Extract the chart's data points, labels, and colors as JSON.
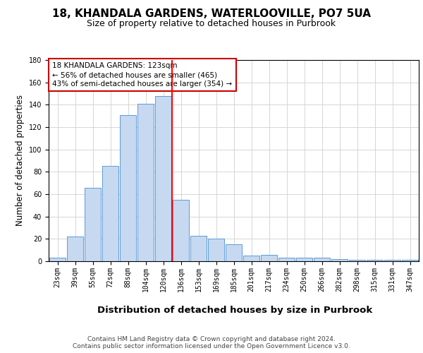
{
  "title1": "18, KHANDALA GARDENS, WATERLOOVILLE, PO7 5UA",
  "title2": "Size of property relative to detached houses in Purbrook",
  "xlabel": "Distribution of detached houses by size in Purbrook",
  "ylabel": "Number of detached properties",
  "categories": [
    "23sqm",
    "39sqm",
    "55sqm",
    "72sqm",
    "88sqm",
    "104sqm",
    "120sqm",
    "136sqm",
    "153sqm",
    "169sqm",
    "185sqm",
    "201sqm",
    "217sqm",
    "234sqm",
    "250sqm",
    "266sqm",
    "282sqm",
    "298sqm",
    "315sqm",
    "331sqm",
    "347sqm"
  ],
  "values": [
    3,
    22,
    66,
    85,
    131,
    141,
    148,
    55,
    23,
    20,
    15,
    5,
    6,
    3,
    3,
    3,
    2,
    1,
    1,
    1,
    1
  ],
  "bar_color": "#c6d9f0",
  "bar_edge_color": "#5b9bd5",
  "red_line_index": 6.5,
  "ylim": [
    0,
    180
  ],
  "yticks": [
    0,
    20,
    40,
    60,
    80,
    100,
    120,
    140,
    160,
    180
  ],
  "annotation_text": "18 KHANDALA GARDENS: 123sqm\n← 56% of detached houses are smaller (465)\n43% of semi-detached houses are larger (354) →",
  "annotation_box_color": "#ffffff",
  "annotation_box_edge_color": "#cc0000",
  "footnote": "Contains HM Land Registry data © Crown copyright and database right 2024.\nContains public sector information licensed under the Open Government Licence v3.0.",
  "background_color": "#ffffff",
  "grid_color": "#d0d0d0",
  "title1_fontsize": 11,
  "title2_fontsize": 9,
  "xlabel_fontsize": 9.5,
  "ylabel_fontsize": 8.5,
  "tick_fontsize": 7,
  "annotation_fontsize": 7.5,
  "footnote_fontsize": 6.5
}
